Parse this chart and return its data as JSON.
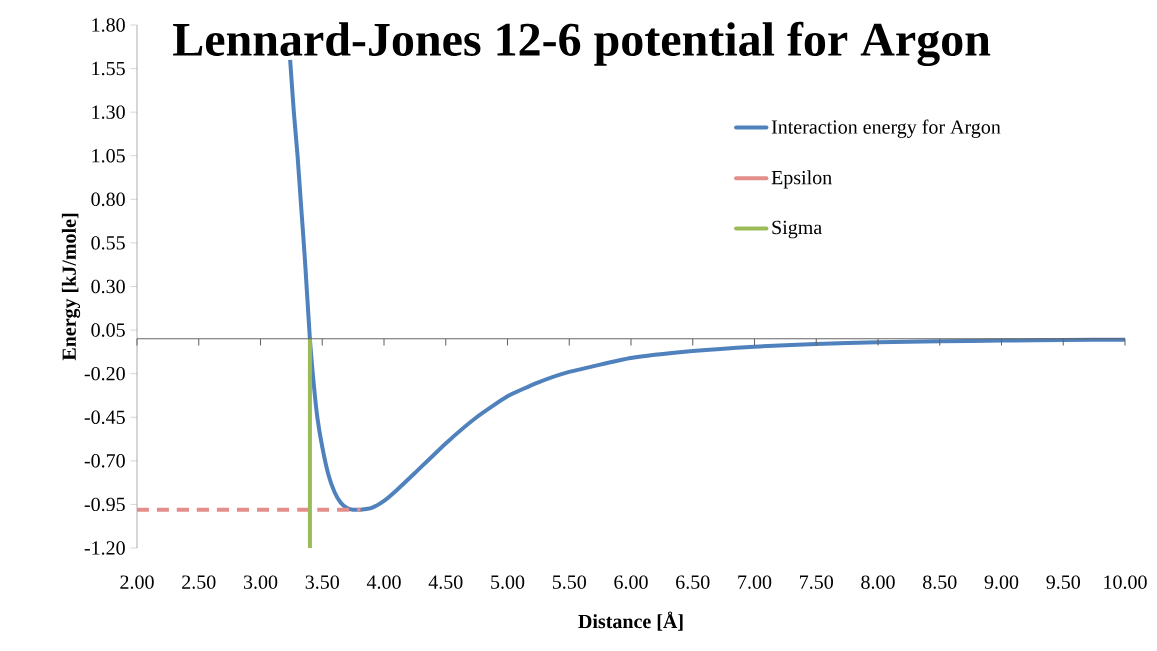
{
  "chart_data": {
    "type": "line",
    "title": "Lennard-Jones 12-6 potential for Argon",
    "xlabel": "Distance [Å]",
    "ylabel": "Energy [kJ/mole]",
    "xlim": [
      2.0,
      10.0
    ],
    "ylim": [
      -1.2,
      1.8
    ],
    "xticks": [
      {
        "value": 2.0,
        "label": "2.00"
      },
      {
        "value": 2.5,
        "label": "2.50"
      },
      {
        "value": 3.0,
        "label": "3.00"
      },
      {
        "value": 3.5,
        "label": "3.50"
      },
      {
        "value": 4.0,
        "label": "4.00"
      },
      {
        "value": 4.5,
        "label": "4.50"
      },
      {
        "value": 5.0,
        "label": "5.00"
      },
      {
        "value": 5.5,
        "label": "5.50"
      },
      {
        "value": 6.0,
        "label": "6.00"
      },
      {
        "value": 6.5,
        "label": "6.50"
      },
      {
        "value": 7.0,
        "label": "7.00"
      },
      {
        "value": 7.5,
        "label": "7.50"
      },
      {
        "value": 8.0,
        "label": "8.00"
      },
      {
        "value": 8.5,
        "label": "8.50"
      },
      {
        "value": 9.0,
        "label": "9.00"
      },
      {
        "value": 9.5,
        "label": "9.50"
      },
      {
        "value": 10.0,
        "label": "10.00"
      }
    ],
    "yticks": [
      {
        "value": -1.2,
        "label": "-1.20"
      },
      {
        "value": -0.95,
        "label": "-0.95"
      },
      {
        "value": -0.7,
        "label": "-0.70"
      },
      {
        "value": -0.45,
        "label": "-0.45"
      },
      {
        "value": -0.2,
        "label": "-0.20"
      },
      {
        "value": 0.05,
        "label": "0.05"
      },
      {
        "value": 0.3,
        "label": "0.30"
      },
      {
        "value": 0.55,
        "label": "0.55"
      },
      {
        "value": 0.8,
        "label": "0.80"
      },
      {
        "value": 1.05,
        "label": "1.05"
      },
      {
        "value": 1.3,
        "label": "1.30"
      },
      {
        "value": 1.55,
        "label": "1.55"
      },
      {
        "value": 1.8,
        "label": "1.80"
      }
    ],
    "legend": "top right",
    "grid": false,
    "marker": "none",
    "series": [
      {
        "name": "Interaction energy for Argon",
        "color": "#4f81bd",
        "line_style": "solid",
        "x": [
          3.24,
          3.27,
          3.3,
          3.33,
          3.36,
          3.4,
          3.43,
          3.46,
          3.5,
          3.55,
          3.6,
          3.65,
          3.7,
          3.75,
          3.81,
          3.9,
          4.0,
          4.1,
          4.25,
          4.5,
          4.75,
          5.0,
          5.25,
          5.5,
          6.0,
          6.5,
          7.0,
          7.5,
          8.0,
          8.5,
          9.0,
          9.5,
          10.0
        ],
        "values": [
          1.6,
          1.3,
          1.05,
          0.75,
          0.45,
          0.0,
          -0.25,
          -0.45,
          -0.62,
          -0.78,
          -0.88,
          -0.94,
          -0.97,
          -0.98,
          -0.98,
          -0.97,
          -0.93,
          -0.87,
          -0.77,
          -0.6,
          -0.45,
          -0.33,
          -0.25,
          -0.19,
          -0.11,
          -0.07,
          -0.045,
          -0.03,
          -0.02,
          -0.014,
          -0.01,
          -0.007,
          -0.005
        ]
      },
      {
        "name": "Epsilon",
        "color": "#e48e8c",
        "line_style": "dashed",
        "x": [
          2.0,
          3.81
        ],
        "values": [
          -0.98,
          -0.98
        ]
      },
      {
        "name": "Sigma",
        "color": "#9bbb59",
        "line_style": "solid",
        "x": [
          3.4,
          3.4
        ],
        "values": [
          -1.2,
          0.0
        ]
      }
    ]
  }
}
